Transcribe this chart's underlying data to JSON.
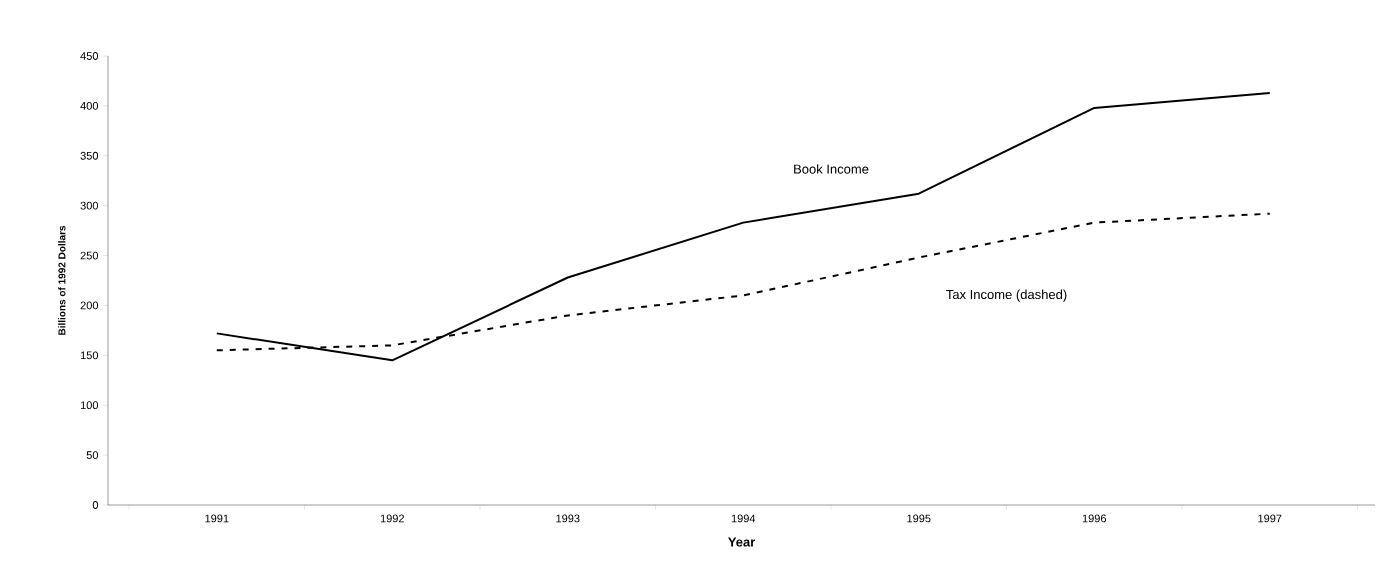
{
  "chart_data": {
    "type": "line",
    "xlabel": "Year",
    "ylabel": "Billions of 1992 Dollars",
    "categories": [
      "1991",
      "1992",
      "1993",
      "1994",
      "1995",
      "1996",
      "1997"
    ],
    "series": [
      {
        "name": "Book Income",
        "color": "#000000",
        "line_style": "solid",
        "values": [
          172,
          145,
          228,
          283,
          312,
          398,
          413
        ]
      },
      {
        "name": "Tax Income (dashed)",
        "color": "#000000",
        "line_style": "dashed",
        "values": [
          155,
          160,
          190,
          210,
          248,
          283,
          292
        ]
      }
    ],
    "ylim": [
      0,
      450
    ],
    "yticks": [
      0,
      50,
      100,
      150,
      200,
      250,
      300,
      350,
      400,
      450
    ],
    "grid": false,
    "legend": false,
    "marker": "none"
  }
}
